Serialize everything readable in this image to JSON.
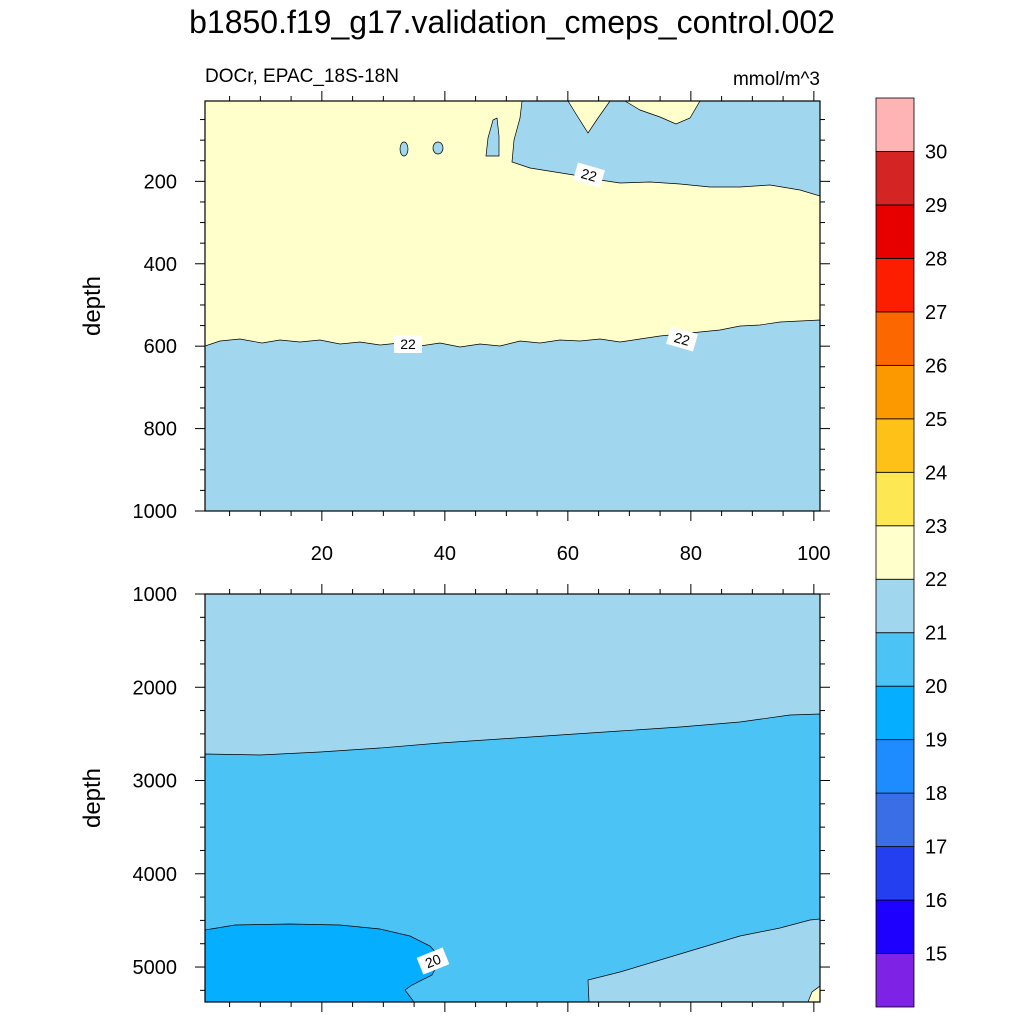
{
  "figure": {
    "title": "b1850.f19_g17.validation_cmeps_control.002",
    "variable_label": "DOCr, EPAC_18S-18N",
    "units_label": "mmol/m^3"
  },
  "chart_data": [
    {
      "type": "contour",
      "panel": "upper",
      "ylabel": "depth",
      "xlim": [
        1,
        101
      ],
      "ylim": [
        1000,
        5
      ],
      "y_inverted": true,
      "x_ticks": [
        20,
        40,
        60,
        80,
        100
      ],
      "y_ticks": [
        200,
        400,
        600,
        800,
        1000
      ],
      "grid": false,
      "contour_level_labels": [
        "22",
        "22",
        "22"
      ],
      "regions": [
        {
          "band": "22-23",
          "color": "#ffffcc",
          "approx_extent": "x 1-101, depth ~5-590"
        },
        {
          "band": "21-22",
          "color": "#a0d6ee",
          "approx_extent": "x 1-101, depth ~590-1000"
        },
        {
          "band": "21-22",
          "color": "#a0d6ee",
          "approx_extent": "x ~52-101, depth ~5-230"
        }
      ]
    },
    {
      "type": "contour",
      "panel": "lower",
      "ylabel": "depth",
      "xlim": [
        1,
        101
      ],
      "ylim": [
        1000,
        5375
      ],
      "y_inverted": true,
      "x_ticks": [
        20,
        40,
        60,
        80,
        100
      ],
      "y_ticks": [
        1000,
        2000,
        3000,
        4000,
        5000
      ],
      "grid": false,
      "contour_level_labels": [
        "20"
      ],
      "regions": [
        {
          "band": "21-22",
          "color": "#a0d6ee",
          "approx_extent": "x 1-101, depth 1000-2700"
        },
        {
          "band": "20-21",
          "color": "#4bc3f5",
          "approx_extent": "x 1-101, depth ~2700-5375"
        },
        {
          "band": "19-20",
          "color": "#05aefe",
          "approx_extent": "x 1-35, depth ~4550-5375"
        },
        {
          "band": "21-22",
          "color": "#a0d6ee",
          "approx_extent": "x ~64-101, depth ~4500-5375"
        }
      ]
    }
  ],
  "colorbar": {
    "labels": [
      "15",
      "16",
      "17",
      "18",
      "19",
      "20",
      "21",
      "22",
      "23",
      "24",
      "25",
      "26",
      "27",
      "28",
      "29",
      "30"
    ],
    "colors": [
      "#7e22e6",
      "#1e00fe",
      "#233ff0",
      "#3a6ee6",
      "#1e8cfe",
      "#05aefe",
      "#4bc3f5",
      "#a0d6ee",
      "#ffffcc",
      "#fde854",
      "#fdc118",
      "#fd9900",
      "#fd6700",
      "#fd1e00",
      "#e60000",
      "#d42424",
      "#feb4b4"
    ],
    "placement": "right"
  }
}
